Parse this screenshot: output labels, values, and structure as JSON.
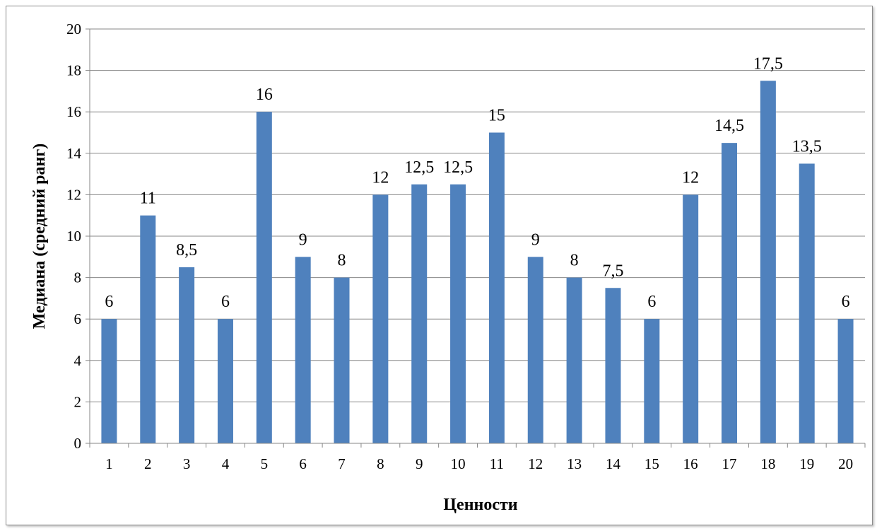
{
  "chart_data": {
    "type": "bar",
    "title": "",
    "xlabel": "Ценности",
    "ylabel": "Медиана (средний ранг)",
    "categories": [
      "1",
      "2",
      "3",
      "4",
      "5",
      "6",
      "7",
      "8",
      "9",
      "10",
      "11",
      "12",
      "13",
      "14",
      "15",
      "16",
      "17",
      "18",
      "19",
      "20"
    ],
    "values": [
      6,
      11,
      8.5,
      6,
      16,
      9,
      8,
      12,
      12.5,
      12.5,
      15,
      9,
      8,
      7.5,
      6,
      12,
      14.5,
      17.5,
      13.5,
      6
    ],
    "data_labels": [
      "6",
      "11",
      "8,5",
      "6",
      "16",
      "9",
      "8",
      "12",
      "12,5",
      "12,5",
      "15",
      "9",
      "8",
      "7,5",
      "6",
      "12",
      "14,5",
      "17,5",
      "13,5",
      "6"
    ],
    "y_ticks": [
      "0",
      "2",
      "4",
      "6",
      "8",
      "10",
      "12",
      "14",
      "16",
      "18",
      "20"
    ],
    "ylim": [
      0,
      20
    ],
    "grid": true,
    "legend": "none",
    "colors": {
      "bar": "#4f81bd",
      "grid": "#878787",
      "axis": "#878787"
    }
  }
}
